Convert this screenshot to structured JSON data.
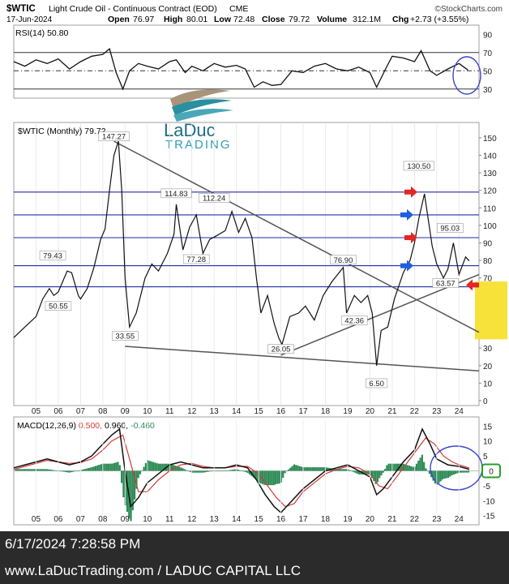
{
  "header": {
    "symbol": "$WTIC",
    "name": "Light Crude Oil - Continuous Contract (EOD)",
    "exchange": "CME",
    "watermark": "©StockCharts.com",
    "date": "17-Jun-2024",
    "open_label": "Open",
    "open": "76.97",
    "high_label": "High",
    "high": "80.01",
    "low_label": "Low",
    "low": "72.48",
    "close_label": "Close",
    "close": "79.72",
    "volume_label": "Volume",
    "volume": "312.1M",
    "chg_label": "Chg",
    "chg": "+2.73 (+3.55%)"
  },
  "logo": {
    "line1": "LaDuc",
    "line2": "TRADING"
  },
  "footer": {
    "timestamp": "6/17/2024 7:28:58 PM",
    "site": "www.LaDucTrading.com / LADUC CAPITAL LLC"
  },
  "colors": {
    "price": "#111111",
    "hline": "#1f2fa8",
    "trendline": "#555555",
    "rsi": "#111111",
    "macd": "#111111",
    "signal": "#d23a3a",
    "histogram": "#2e8b57",
    "circle": "#3a46c8",
    "highlight": "#f7e23a",
    "box_green": "#25a025",
    "arrow_red": "#e32626",
    "arrow_blue": "#1f5fe0"
  },
  "chart_data": [
    {
      "type": "line",
      "panel": "rsi",
      "title": "RSI(14) 50.80",
      "yticks": [
        "90",
        "70",
        "50",
        "30"
      ],
      "ylim": [
        20,
        100
      ],
      "x": [
        2004.0,
        2004.5,
        2005.0,
        2005.5,
        2006.0,
        2006.5,
        2007.0,
        2007.5,
        2008.0,
        2008.3,
        2008.6,
        2008.9,
        2009.2,
        2009.6,
        2010.0,
        2010.5,
        2011.0,
        2011.3,
        2011.7,
        2012.0,
        2012.5,
        2013.0,
        2013.5,
        2014.0,
        2014.4,
        2014.8,
        2015.2,
        2015.6,
        2016.0,
        2016.5,
        2017.0,
        2017.5,
        2018.0,
        2018.5,
        2019.0,
        2019.5,
        2020.0,
        2020.3,
        2020.7,
        2021.0,
        2021.5,
        2022.0,
        2022.3,
        2022.7,
        2023.0,
        2023.5,
        2024.0,
        2024.4
      ],
      "values": [
        60,
        55,
        62,
        58,
        63,
        52,
        60,
        66,
        68,
        74,
        48,
        30,
        50,
        58,
        55,
        52,
        60,
        62,
        48,
        55,
        50,
        58,
        54,
        56,
        52,
        32,
        38,
        34,
        35,
        50,
        48,
        55,
        58,
        52,
        50,
        54,
        48,
        32,
        52,
        66,
        64,
        60,
        72,
        50,
        45,
        52,
        58,
        50.8
      ]
    },
    {
      "type": "line",
      "panel": "price",
      "title": "$WTIC (Monthly) 79.72",
      "xlabel": "",
      "ylabel": "",
      "xticks": [
        "05",
        "06",
        "07",
        "08",
        "09",
        "10",
        "11",
        "12",
        "13",
        "14",
        "15",
        "16",
        "17",
        "18",
        "19",
        "20",
        "21",
        "22",
        "23",
        "24"
      ],
      "yticks": [
        0,
        10,
        20,
        30,
        40,
        50,
        60,
        70,
        80,
        90,
        100,
        110,
        120,
        130,
        140,
        150
      ],
      "ylim": [
        0,
        155
      ],
      "x": [
        2004.0,
        2004.5,
        2005.0,
        2005.3,
        2005.6,
        2005.8,
        2006.0,
        2006.4,
        2006.6,
        2006.9,
        2007.0,
        2007.3,
        2007.6,
        2007.9,
        2008.1,
        2008.3,
        2008.5,
        2008.7,
        2008.85,
        2009.0,
        2009.2,
        2009.5,
        2009.9,
        2010.2,
        2010.5,
        2010.9,
        2011.2,
        2011.3,
        2011.6,
        2011.9,
        2012.2,
        2012.5,
        2012.8,
        2013.1,
        2013.5,
        2013.8,
        2014.1,
        2014.4,
        2014.7,
        2014.9,
        2015.1,
        2015.4,
        2015.7,
        2015.9,
        2016.05,
        2016.4,
        2016.8,
        2017.1,
        2017.5,
        2017.9,
        2018.3,
        2018.8,
        2018.95,
        2019.3,
        2019.6,
        2019.9,
        2020.1,
        2020.3,
        2020.5,
        2020.8,
        2021.1,
        2021.5,
        2021.8,
        2022.0,
        2022.2,
        2022.45,
        2022.8,
        2023.0,
        2023.3,
        2023.5,
        2023.75,
        2024.0,
        2024.3,
        2024.46
      ],
      "values": [
        36,
        42,
        48,
        58,
        64,
        60,
        62,
        74,
        73,
        60,
        58,
        64,
        76,
        92,
        98,
        120,
        140,
        148,
        120,
        70,
        42,
        50,
        70,
        78,
        74,
        84,
        95,
        112,
        86,
        99,
        106,
        84,
        92,
        94,
        97,
        108,
        96,
        104,
        93,
        70,
        50,
        60,
        44,
        36,
        32,
        48,
        50,
        54,
        46,
        60,
        68,
        76,
        50,
        60,
        56,
        60,
        50,
        20,
        40,
        42,
        58,
        73,
        80,
        90,
        104,
        118,
        88,
        78,
        70,
        75,
        90,
        72,
        82,
        79.72
      ]
    },
    {
      "type": "line",
      "panel": "macd",
      "title": "MACD(12,26,9) 0.500, 0.960, -0.460",
      "yticks": [
        "15",
        "10",
        "5",
        "0",
        "-5",
        "-10",
        "-15"
      ],
      "ylim": [
        -17,
        17
      ],
      "series": [
        {
          "name": "MACD",
          "x": [
            2004.0,
            2004.5,
            2005.0,
            2005.5,
            2006.0,
            2006.5,
            2007.0,
            2007.5,
            2008.0,
            2008.4,
            2008.75,
            2009.0,
            2009.25,
            2009.6,
            2010.0,
            2010.5,
            2011.0,
            2011.5,
            2012.0,
            2012.5,
            2013.0,
            2013.5,
            2014.0,
            2014.5,
            2014.9,
            2015.3,
            2015.7,
            2016.0,
            2016.5,
            2017.0,
            2017.5,
            2018.0,
            2018.5,
            2019.0,
            2019.5,
            2020.0,
            2020.3,
            2020.6,
            2021.0,
            2021.5,
            2022.0,
            2022.35,
            2022.7,
            2023.0,
            2023.5,
            2024.0,
            2024.46
          ],
          "values": [
            1,
            2,
            3,
            4,
            3,
            2,
            3,
            5,
            9,
            12,
            14,
            0,
            -12,
            -9,
            -4,
            -1,
            2,
            3,
            2,
            1,
            1,
            1,
            2,
            1,
            -3,
            -8,
            -12,
            -14,
            -10,
            -6,
            -3,
            0,
            1,
            2,
            0,
            -2,
            -8,
            -6,
            -2,
            3,
            7,
            14,
            9,
            4,
            2,
            1.5,
            0.5
          ]
        },
        {
          "name": "Signal",
          "x": [
            2004.0,
            2004.5,
            2005.0,
            2005.5,
            2006.0,
            2006.5,
            2007.0,
            2007.5,
            2008.0,
            2008.4,
            2008.9,
            2009.2,
            2009.6,
            2010.0,
            2010.5,
            2011.0,
            2011.5,
            2012.0,
            2012.5,
            2013.0,
            2013.5,
            2014.0,
            2014.5,
            2015.0,
            2015.4,
            2015.8,
            2016.2,
            2016.6,
            2017.0,
            2017.5,
            2018.0,
            2018.5,
            2019.0,
            2019.5,
            2020.0,
            2020.4,
            2020.8,
            2021.2,
            2021.6,
            2022.0,
            2022.5,
            2022.9,
            2023.3,
            2023.7,
            2024.0,
            2024.46
          ],
          "values": [
            0.5,
            1.5,
            2.5,
            3.5,
            3,
            2.5,
            2.8,
            4,
            7,
            10,
            12,
            4,
            -7,
            -7,
            -3,
            0,
            2,
            2.5,
            1.5,
            1,
            1,
            1.5,
            1.5,
            -1,
            -5,
            -9,
            -12,
            -11,
            -7,
            -4,
            -1,
            0.5,
            1.5,
            1,
            -1,
            -5,
            -6,
            -2,
            2,
            6,
            11,
            9,
            5,
            3,
            2,
            0.96
          ]
        }
      ],
      "histogram_note": "-0.460"
    }
  ],
  "annotations": {
    "price_labels": [
      "147.27",
      "79.43",
      "50.55",
      "33.55",
      "114.83",
      "77.28",
      "112.24",
      "26.05",
      "76.90",
      "42.36",
      "6.50",
      "130.50",
      "95.03",
      "63.57"
    ],
    "price_label_points": [
      {
        "x": 2008.5,
        "y": 147.27
      },
      {
        "x": 2005.75,
        "y": 79.43
      },
      {
        "x": 2006.0,
        "y": 50.55
      },
      {
        "x": 2009.0,
        "y": 33.55
      },
      {
        "x": 2011.3,
        "y": 114.83
      },
      {
        "x": 2012.2,
        "y": 77.28
      },
      {
        "x": 2013.0,
        "y": 112.24
      },
      {
        "x": 2016.0,
        "y": 26.05
      },
      {
        "x": 2018.8,
        "y": 76.9
      },
      {
        "x": 2019.3,
        "y": 42.36
      },
      {
        "x": 2020.3,
        "y": 6.5
      },
      {
        "x": 2022.2,
        "y": 130.5
      },
      {
        "x": 2023.6,
        "y": 95.03
      },
      {
        "x": 2023.4,
        "y": 63.57
      }
    ],
    "horizontal_levels": [
      65,
      77,
      93,
      106,
      119
    ],
    "trendlines": [
      {
        "x": [
          2008.5,
          2024.9
        ],
        "y": [
          148,
          39
        ]
      },
      {
        "x": [
          2009.0,
          2024.9
        ],
        "y": [
          31,
          17
        ]
      },
      {
        "x": [
          2016.0,
          2024.9
        ],
        "y": [
          26,
          72
        ]
      }
    ],
    "red_arrow_levels": [
      119,
      93
    ],
    "blue_arrow_levels": [
      106,
      77
    ],
    "left_red_arrow_level": 66,
    "highlight_range": [
      35,
      68
    ],
    "macd_zero_box": "0"
  }
}
